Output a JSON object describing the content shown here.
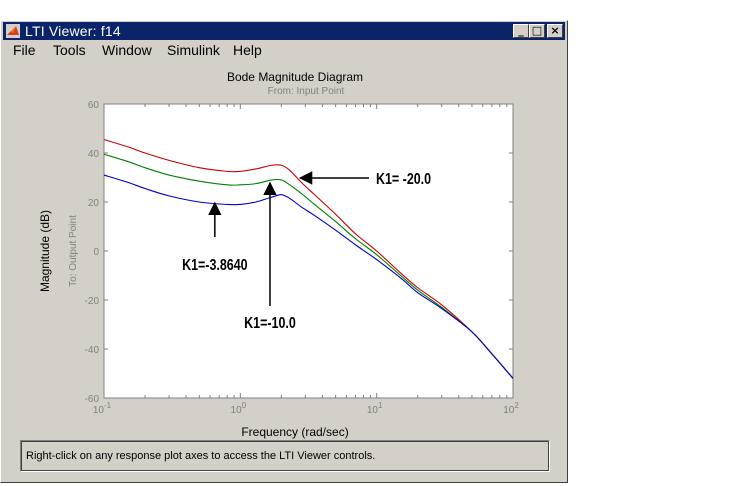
{
  "window": {
    "title": "LTI Viewer: f14",
    "buttons": {
      "minimize": "_",
      "maximize": "□",
      "close": "×"
    }
  },
  "menu": {
    "items": [
      "File",
      "Tools",
      "Window",
      "Simulink",
      "Help"
    ]
  },
  "plot": {
    "title": "Bode Magnitude Diagram",
    "subtitle": "From: Input Point",
    "ylabel": "Magnitude (dB)",
    "ylabel2": "To: Output Point",
    "xlabel": "Frequency (rad/sec)",
    "annotations": [
      "K1= -20.0",
      "K1=-3.8640",
      "K1=-10.0"
    ]
  },
  "chart_data": {
    "type": "line",
    "title": "Bode Magnitude Diagram",
    "subtitle": "From: Input Point",
    "xlabel": "Frequency (rad/sec)",
    "ylabel": "Magnitude (dB)",
    "xscale": "log",
    "xlim": [
      0.1,
      100
    ],
    "ylim": [
      -60,
      60
    ],
    "yticks": [
      -60,
      -40,
      -20,
      0,
      20,
      40,
      60
    ],
    "xticks": [
      {
        "value": 0.1,
        "base": "10",
        "exp": "-1"
      },
      {
        "value": 1,
        "base": "10",
        "exp": "0"
      },
      {
        "value": 10,
        "base": "10",
        "exp": "1"
      },
      {
        "value": 100,
        "base": "10",
        "exp": "2"
      }
    ],
    "grid": false,
    "series": [
      {
        "color": "#cc0000",
        "x": [
          0.1,
          0.15,
          0.2,
          0.3,
          0.5,
          0.8,
          1.0,
          1.3,
          1.7,
          2.0,
          2.3,
          2.8,
          3.5,
          5,
          7,
          10,
          15,
          20,
          30,
          50,
          70,
          100
        ],
        "y": [
          45.5,
          42.5,
          40,
          37,
          34,
          32.5,
          32.5,
          33.5,
          35,
          35,
          33,
          28,
          23,
          15,
          7,
          0,
          -9,
          -15,
          -22,
          -33,
          -42,
          -52
        ]
      },
      {
        "color": "#008000",
        "x": [
          0.1,
          0.15,
          0.2,
          0.3,
          0.5,
          0.8,
          1.0,
          1.3,
          1.7,
          2.0,
          2.3,
          2.8,
          3.5,
          5,
          7,
          10,
          15,
          20,
          30,
          50,
          70,
          100
        ],
        "y": [
          39.5,
          36.5,
          34,
          31,
          28.5,
          27,
          27,
          27.5,
          29,
          29,
          27,
          23.5,
          19,
          12,
          5,
          -1.5,
          -10,
          -16,
          -23,
          -33,
          -42,
          -52
        ]
      },
      {
        "color": "#0000cc",
        "x": [
          0.1,
          0.15,
          0.2,
          0.3,
          0.5,
          0.8,
          1.0,
          1.3,
          1.7,
          2.0,
          2.3,
          2.8,
          3.5,
          5,
          7,
          10,
          15,
          20,
          30,
          50,
          70,
          100
        ],
        "y": [
          31,
          28,
          25.5,
          22.5,
          20,
          19,
          19,
          20,
          22,
          23,
          21.5,
          18,
          14.5,
          8.5,
          2.5,
          -3.5,
          -11,
          -17,
          -23.5,
          -33,
          -42,
          -52
        ]
      }
    ],
    "annotations": [
      {
        "text": "K1= -20.0",
        "target_x": 2.7,
        "target_y": 29
      },
      {
        "text": "K1=-3.8640",
        "target_x": 0.65,
        "target_y": 20
      },
      {
        "text": "K1=-10.0",
        "target_x": 1.65,
        "target_y": 29
      }
    ]
  },
  "status": {
    "text": "Right-click on any response plot axes to access the LTI Viewer controls."
  }
}
